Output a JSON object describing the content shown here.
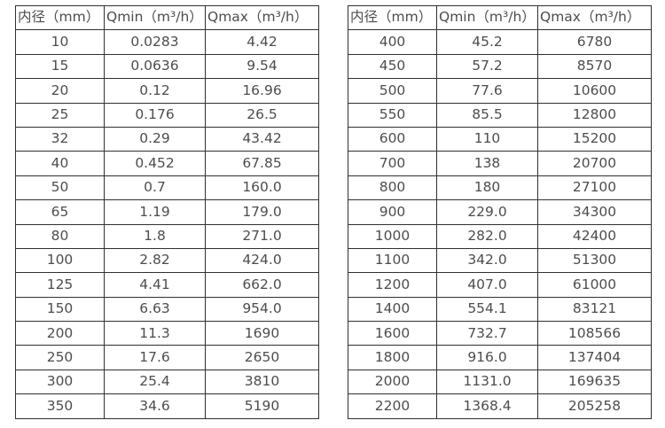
{
  "colors": {
    "border": "#303030",
    "text": "#4d4d4d",
    "background": "#ffffff"
  },
  "tables": [
    {
      "headers": [
        "内径（mm）",
        "Qmin（m³/h）",
        "Qmax（m³/h）"
      ],
      "rows": [
        [
          "10",
          "0.0283",
          "4.42"
        ],
        [
          "15",
          "0.0636",
          "9.54"
        ],
        [
          "20",
          "0.12",
          "16.96"
        ],
        [
          "25",
          "0.176",
          "26.5"
        ],
        [
          "32",
          "0.29",
          "43.42"
        ],
        [
          "40",
          "0.452",
          "67.85"
        ],
        [
          "50",
          "0.7",
          "160.0"
        ],
        [
          "65",
          "1.19",
          "179.0"
        ],
        [
          "80",
          "1.8",
          "271.0"
        ],
        [
          "100",
          "2.82",
          "424.0"
        ],
        [
          "125",
          "4.41",
          "662.0"
        ],
        [
          "150",
          "6.63",
          "954.0"
        ],
        [
          "200",
          "11.3",
          "1690"
        ],
        [
          "250",
          "17.6",
          "2650"
        ],
        [
          "300",
          "25.4",
          "3810"
        ],
        [
          "350",
          "34.6",
          "5190"
        ]
      ]
    },
    {
      "headers": [
        "内径（mm）",
        "Qmin（m³/h）",
        "Qmax（m³/h）"
      ],
      "rows": [
        [
          "400",
          "45.2",
          "6780"
        ],
        [
          "450",
          "57.2",
          "8570"
        ],
        [
          "500",
          "77.6",
          "10600"
        ],
        [
          "550",
          "85.5",
          "12800"
        ],
        [
          "600",
          "110",
          "15200"
        ],
        [
          "700",
          "138",
          "20700"
        ],
        [
          "800",
          "180",
          "27100"
        ],
        [
          "900",
          "229.0",
          "34300"
        ],
        [
          "1000",
          "282.0",
          "42400"
        ],
        [
          "1100",
          "342.0",
          "51300"
        ],
        [
          "1200",
          "407.0",
          "61000"
        ],
        [
          "1400",
          "554.1",
          "83121"
        ],
        [
          "1600",
          "732.7",
          "108566"
        ],
        [
          "1800",
          "916.0",
          "137404"
        ],
        [
          "2000",
          "1131.0",
          "169635"
        ],
        [
          "2200",
          "1368.4",
          "205258"
        ]
      ]
    }
  ]
}
